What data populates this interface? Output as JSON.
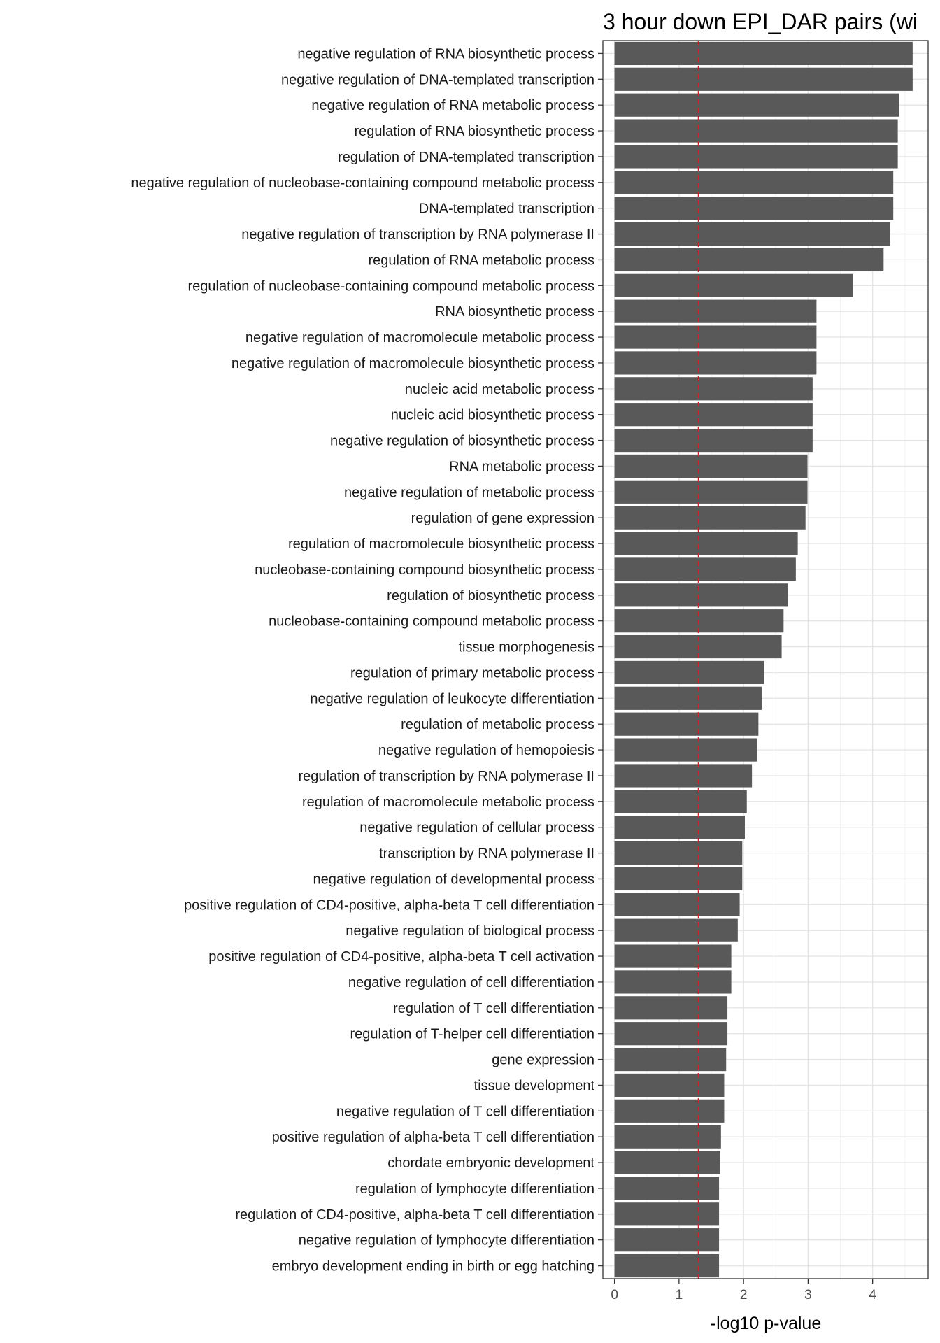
{
  "chart_data": {
    "type": "bar",
    "orientation": "horizontal",
    "title": "3 hour down EPI_DAR pairs (wi",
    "xlabel": "-log10 p-value",
    "ylabel": "",
    "xlim": [
      -0.18,
      4.86
    ],
    "x_ticks": [
      0,
      1,
      2,
      3,
      4
    ],
    "grid": true,
    "bar_color": "#595959",
    "reference_line": {
      "x": 1.3,
      "color": "#cc2222",
      "style": "dashed"
    },
    "categories": [
      "negative regulation of RNA biosynthetic process",
      "negative regulation of DNA-templated transcription",
      "negative regulation of RNA metabolic process",
      "regulation of RNA biosynthetic process",
      "regulation of DNA-templated transcription",
      "negative regulation of nucleobase-containing compound metabolic process",
      "DNA-templated transcription",
      "negative regulation of transcription by RNA polymerase II",
      "regulation of RNA metabolic process",
      "regulation of nucleobase-containing compound metabolic process",
      "RNA biosynthetic process",
      "negative regulation of macromolecule metabolic process",
      "negative regulation of macromolecule biosynthetic process",
      "nucleic acid metabolic process",
      "nucleic acid biosynthetic process",
      "negative regulation of biosynthetic process",
      "RNA metabolic process",
      "negative regulation of metabolic process",
      "regulation of gene expression",
      "regulation of macromolecule biosynthetic process",
      "nucleobase-containing compound biosynthetic process",
      "regulation of biosynthetic process",
      "nucleobase-containing compound metabolic process",
      "tissue morphogenesis",
      "regulation of primary metabolic process",
      "negative regulation of leukocyte differentiation",
      "regulation of metabolic process",
      "negative regulation of hemopoiesis",
      "regulation of transcription by RNA polymerase II",
      "regulation of macromolecule metabolic process",
      "negative regulation of cellular process",
      "transcription by RNA polymerase II",
      "negative regulation of developmental process",
      "positive regulation of CD4-positive, alpha-beta T cell differentiation",
      "negative regulation of biological process",
      "positive regulation of CD4-positive, alpha-beta T cell activation",
      "negative regulation of cell differentiation",
      "regulation of T cell differentiation",
      "regulation of T-helper cell differentiation",
      "gene expression",
      "tissue development",
      "negative regulation of T cell differentiation",
      "positive regulation of alpha-beta T cell differentiation",
      "chordate embryonic development",
      "regulation of lymphocyte differentiation",
      "regulation of CD4-positive, alpha-beta T cell differentiation",
      "negative regulation of lymphocyte differentiation",
      "embryo development ending in birth or egg hatching"
    ],
    "values": [
      4.62,
      4.62,
      4.41,
      4.39,
      4.39,
      4.32,
      4.32,
      4.27,
      4.17,
      3.7,
      3.13,
      3.13,
      3.13,
      3.07,
      3.07,
      3.07,
      2.99,
      2.99,
      2.96,
      2.84,
      2.81,
      2.69,
      2.62,
      2.59,
      2.32,
      2.28,
      2.23,
      2.21,
      2.13,
      2.05,
      2.02,
      1.98,
      1.98,
      1.94,
      1.91,
      1.81,
      1.81,
      1.75,
      1.75,
      1.73,
      1.7,
      1.7,
      1.65,
      1.64,
      1.62,
      1.62,
      1.62,
      1.62
    ]
  }
}
